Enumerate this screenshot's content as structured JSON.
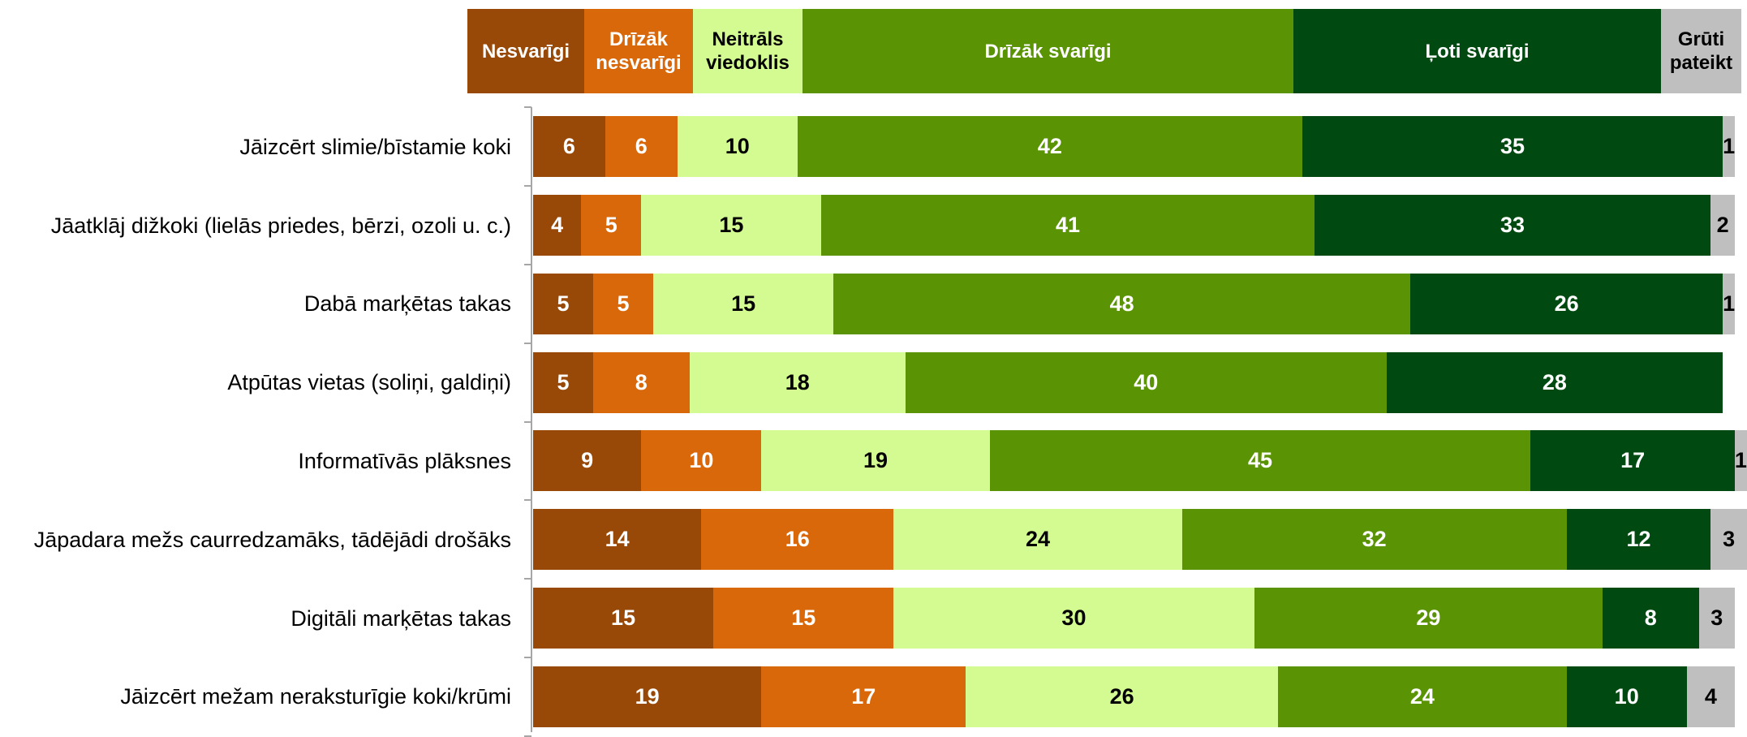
{
  "chart_data": {
    "type": "stacked-bar-horizontal",
    "categories": [
      "Jāizcērt slimie/bīstamie koki",
      "Jāatklāj dižkoki (lielās priedes, bērzi, ozoli u. c.)",
      "Dabā marķētas takas",
      "Atpūtas vietas (soliņi, galdiņi)",
      "Informatīvās plāksnes",
      "Jāpadara mežs caurredzamāks, tādējādi drošāks",
      "Digitāli marķētas takas",
      "Jāizcērt mežam neraksturīgie koki/krūmi"
    ],
    "series": [
      {
        "name": "Nesvarīgi",
        "color": "#984807",
        "values": [
          6,
          4,
          5,
          5,
          9,
          14,
          15,
          19
        ]
      },
      {
        "name": "Drīzāk nesvarīgi",
        "color": "#d9680b",
        "values": [
          6,
          5,
          5,
          8,
          10,
          16,
          15,
          17
        ]
      },
      {
        "name": "Neitrāls viedoklis",
        "color": "#d4fb91",
        "values": [
          10,
          15,
          15,
          18,
          19,
          24,
          30,
          26
        ]
      },
      {
        "name": "Drīzāk svarīgi",
        "color": "#5a9304",
        "values": [
          42,
          41,
          48,
          40,
          45,
          32,
          29,
          24
        ]
      },
      {
        "name": "Ļoti svarīgi",
        "color": "#004a12",
        "values": [
          35,
          33,
          26,
          28,
          17,
          12,
          8,
          10
        ]
      },
      {
        "name": "Grūti pateikt",
        "color": "#bfbfbf",
        "values": [
          1,
          2,
          1,
          null,
          1,
          3,
          3,
          4
        ]
      }
    ],
    "xlim": [
      0,
      100
    ]
  }
}
